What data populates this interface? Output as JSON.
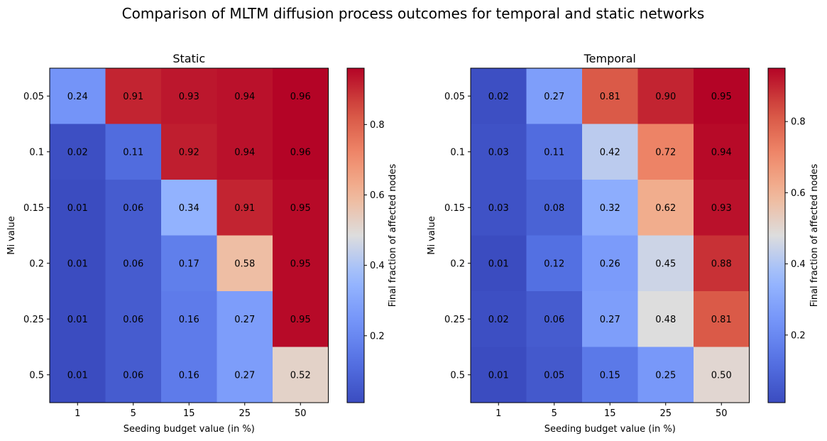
{
  "suptitle": "Comparison of MLTM diffusion process outcomes for temporal and static networks",
  "chart_data": [
    {
      "type": "heatmap",
      "title": "Static",
      "xlabel": "Seeding budget value (in %)",
      "ylabel": "Mi value",
      "x_categories": [
        "1",
        "5",
        "15",
        "25",
        "50"
      ],
      "y_categories": [
        "0.05",
        "0.1",
        "0.15",
        "0.2",
        "0.25",
        "0.5"
      ],
      "values": [
        [
          0.24,
          0.91,
          0.93,
          0.94,
          0.96
        ],
        [
          0.02,
          0.11,
          0.92,
          0.94,
          0.96
        ],
        [
          0.01,
          0.06,
          0.34,
          0.91,
          0.95
        ],
        [
          0.01,
          0.06,
          0.17,
          0.58,
          0.95
        ],
        [
          0.01,
          0.06,
          0.16,
          0.27,
          0.95
        ],
        [
          0.01,
          0.06,
          0.16,
          0.27,
          0.52
        ]
      ],
      "colormap": "coolwarm",
      "vmin": 0.01,
      "vmax": 0.96,
      "colorbar": {
        "label": "Final fraction of affected nodes",
        "ticks": [
          "0.2",
          "0.4",
          "0.6",
          "0.8"
        ]
      }
    },
    {
      "type": "heatmap",
      "title": "Temporal",
      "xlabel": "Seeding budget value (in %)",
      "ylabel": "Mi value",
      "x_categories": [
        "1",
        "5",
        "15",
        "25",
        "50"
      ],
      "y_categories": [
        "0.05",
        "0.1",
        "0.15",
        "0.2",
        "0.25",
        "0.5"
      ],
      "values": [
        [
          0.02,
          0.27,
          0.81,
          0.9,
          0.95
        ],
        [
          0.03,
          0.11,
          0.42,
          0.72,
          0.94
        ],
        [
          0.03,
          0.08,
          0.32,
          0.62,
          0.93
        ],
        [
          0.01,
          0.12,
          0.26,
          0.45,
          0.88
        ],
        [
          0.02,
          0.06,
          0.27,
          0.48,
          0.81
        ],
        [
          0.01,
          0.05,
          0.15,
          0.25,
          0.5
        ]
      ],
      "colormap": "coolwarm",
      "vmin": 0.01,
      "vmax": 0.95,
      "colorbar": {
        "label": "Final fraction of affected nodes",
        "ticks": [
          "0.2",
          "0.4",
          "0.6",
          "0.8"
        ]
      }
    }
  ]
}
